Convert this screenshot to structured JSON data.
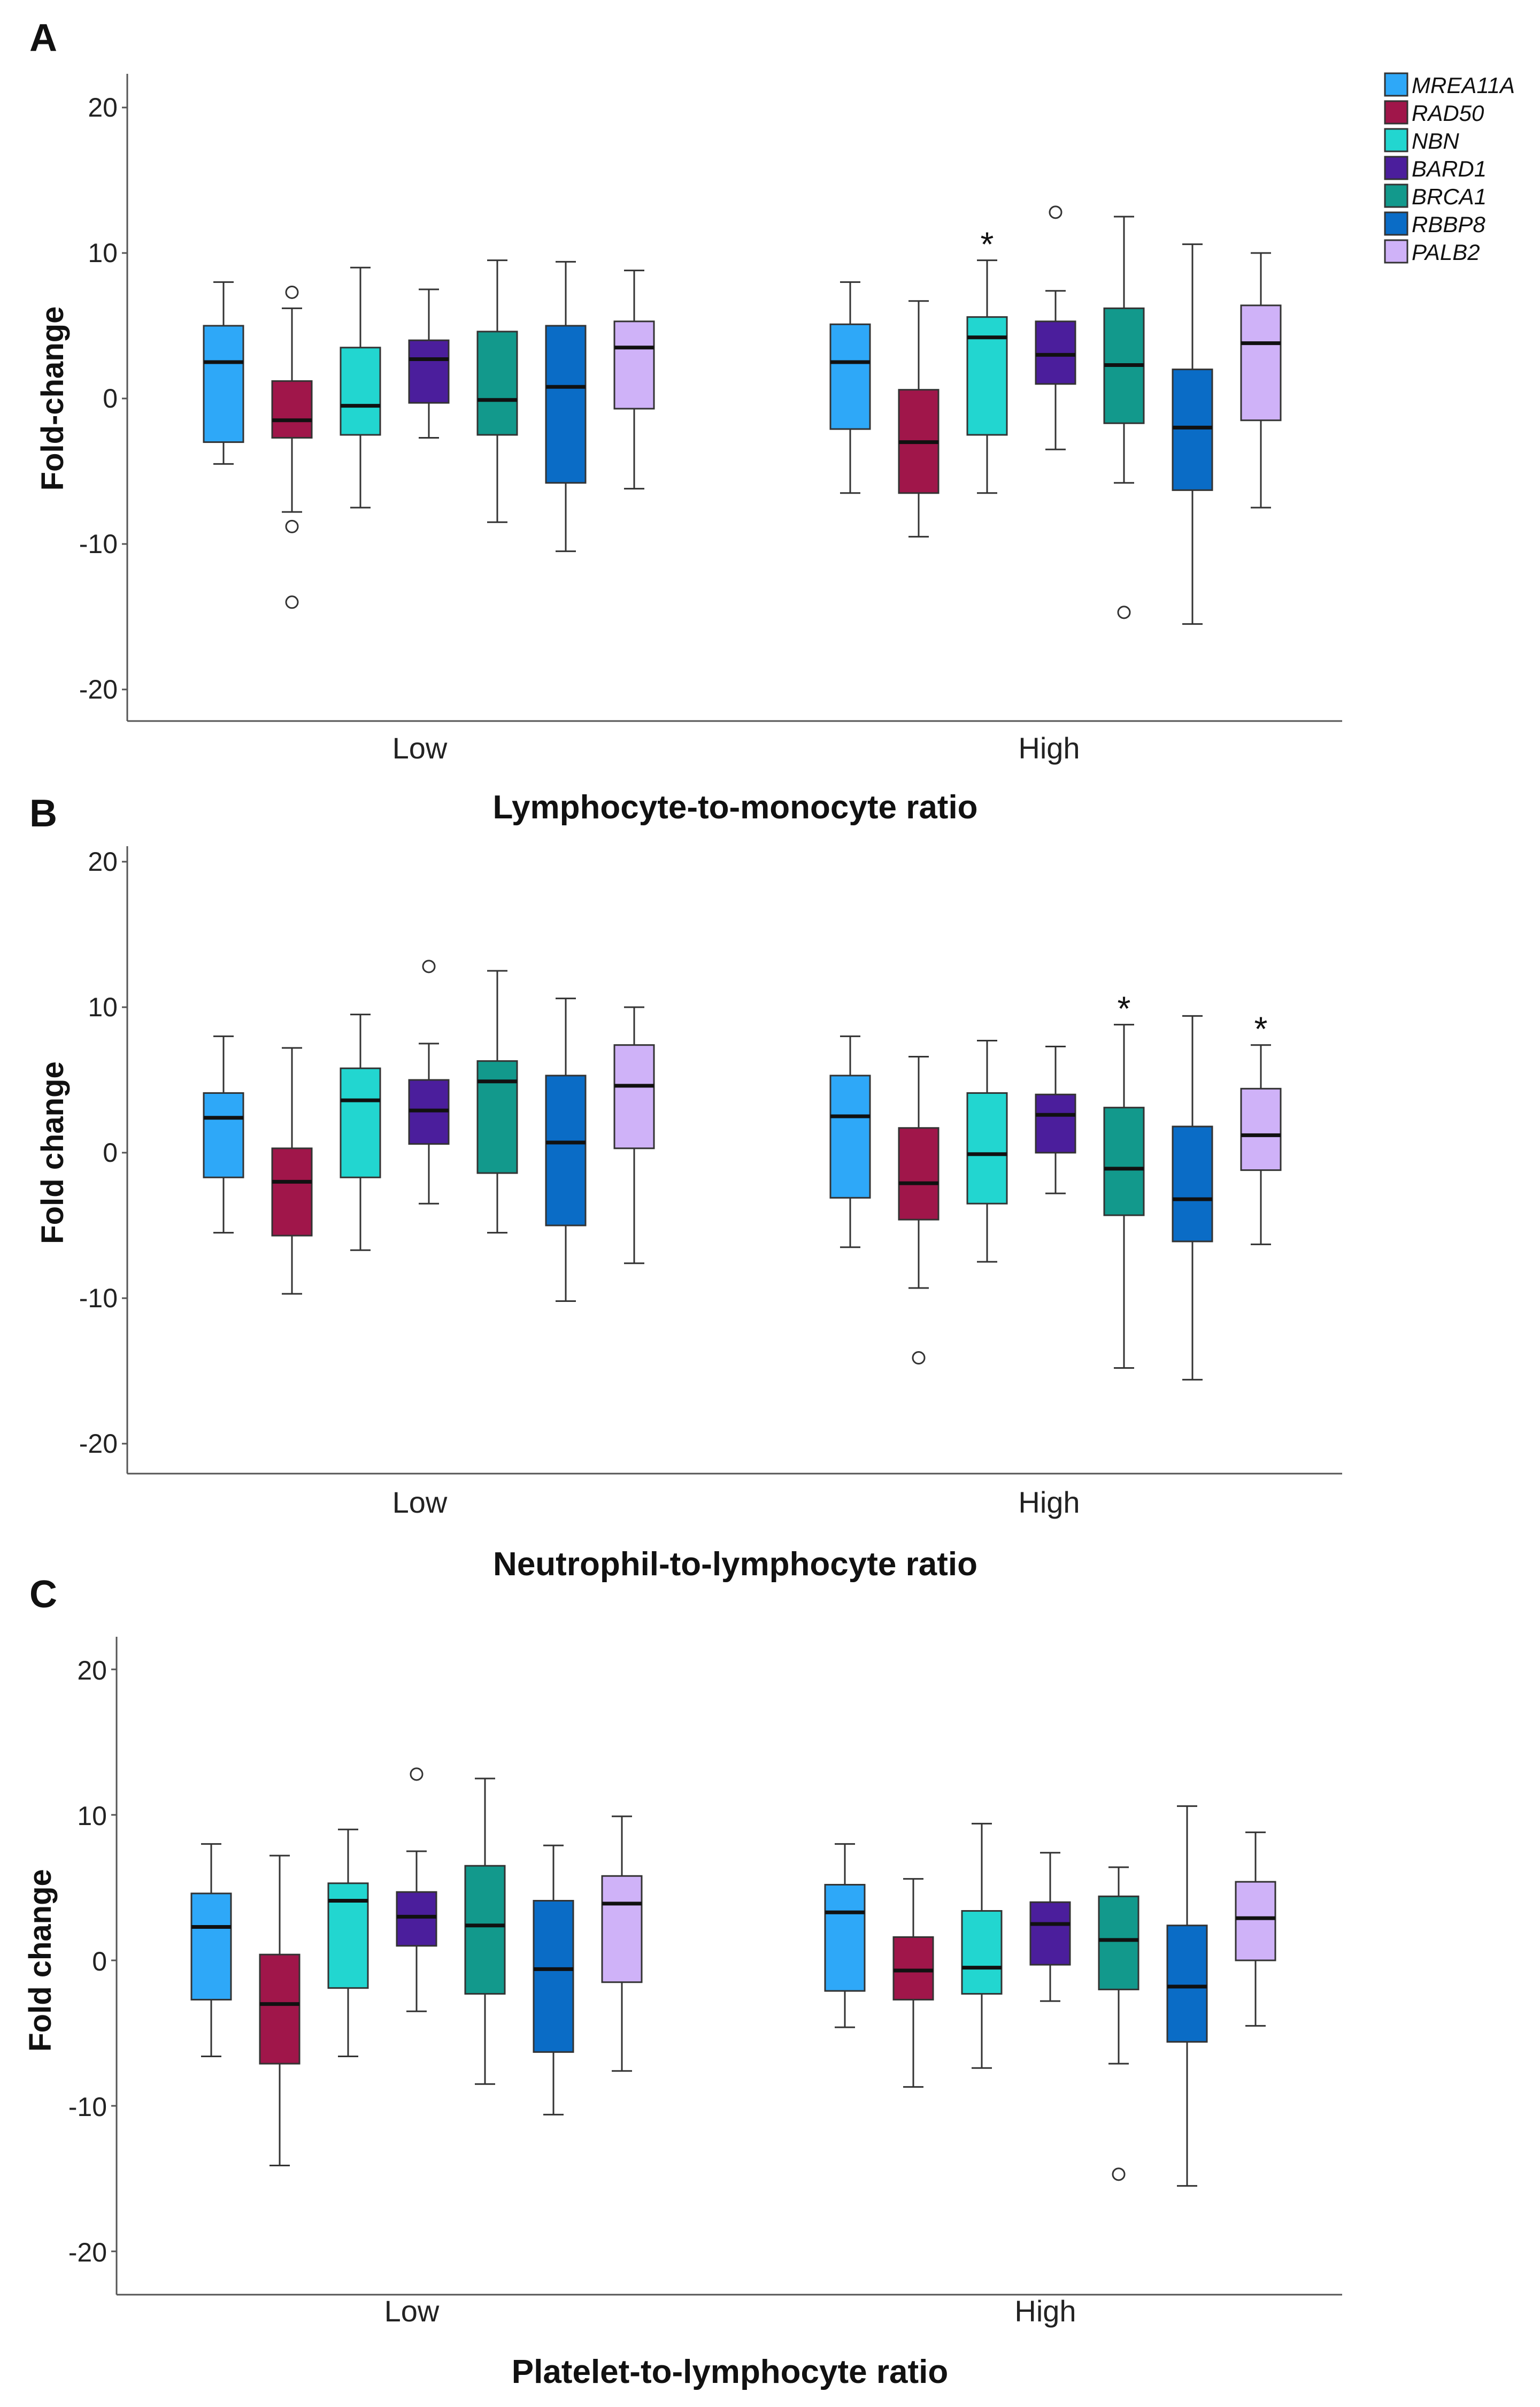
{
  "legend": [
    {
      "gene": "MREA11A",
      "color": "#2EA8F8"
    },
    {
      "gene": "RAD50",
      "color": "#A0164A"
    },
    {
      "gene": "NBN",
      "color": "#22D6D0"
    },
    {
      "gene": "BARD1",
      "color": "#4B1E9C"
    },
    {
      "gene": "BRCA1",
      "color": "#12998C"
    },
    {
      "gene": "RBBP8",
      "color": "#0A6CC6"
    },
    {
      "gene": "PALB2",
      "color": "#CFB2F8"
    }
  ],
  "chart_data": [
    {
      "type": "boxplot",
      "panel": "A",
      "xlabel": "Lymphocyte-to-monocyte ratio",
      "ylabel": "Fold-change",
      "ylim": [
        -22,
        22
      ],
      "yticks": [
        "20",
        "10",
        "0",
        "-10",
        "-20"
      ],
      "groups": [
        "Low",
        "High"
      ],
      "series": [
        {
          "group": "Low",
          "boxes": [
            {
              "gene": "MREA11A",
              "min": -4.5,
              "q1": -3,
              "median": 2.5,
              "q3": 5,
              "max": 8,
              "outliers": [],
              "star": ""
            },
            {
              "gene": "RAD50",
              "min": -7.8,
              "q1": -2.7,
              "median": -1.5,
              "q3": 1.2,
              "max": 6.2,
              "outliers": [
                7.3,
                -8.8,
                -14
              ],
              "star": ""
            },
            {
              "gene": "NBN",
              "min": -7.5,
              "q1": -2.5,
              "median": -0.5,
              "q3": 3.5,
              "max": 9,
              "outliers": [],
              "star": ""
            },
            {
              "gene": "BARD1",
              "min": -2.7,
              "q1": -0.3,
              "median": 2.7,
              "q3": 4,
              "max": 7.5,
              "outliers": [],
              "star": ""
            },
            {
              "gene": "BRCA1",
              "min": -8.5,
              "q1": -2.5,
              "median": -0.1,
              "q3": 4.6,
              "max": 9.5,
              "outliers": [],
              "star": ""
            },
            {
              "gene": "RBBP8",
              "min": -10.5,
              "q1": -5.8,
              "median": 0.8,
              "q3": 5,
              "max": 9.4,
              "outliers": [],
              "star": ""
            },
            {
              "gene": "PALB2",
              "min": -6.2,
              "q1": -0.7,
              "median": 3.5,
              "q3": 5.3,
              "max": 8.8,
              "outliers": [],
              "star": ""
            }
          ]
        },
        {
          "group": "High",
          "boxes": [
            {
              "gene": "MREA11A",
              "min": -6.5,
              "q1": -2.1,
              "median": 2.5,
              "q3": 5.1,
              "max": 8,
              "outliers": [],
              "star": ""
            },
            {
              "gene": "RAD50",
              "min": -9.5,
              "q1": -6.5,
              "median": -3,
              "q3": 0.6,
              "max": 6.7,
              "outliers": [],
              "star": ""
            },
            {
              "gene": "NBN",
              "min": -6.5,
              "q1": -2.5,
              "median": 4.2,
              "q3": 5.6,
              "max": 9.5,
              "outliers": [],
              "star": "*"
            },
            {
              "gene": "BARD1",
              "min": -3.5,
              "q1": 1,
              "median": 3,
              "q3": 5.3,
              "max": 7.4,
              "outliers": [
                12.8
              ],
              "star": ""
            },
            {
              "gene": "BRCA1",
              "min": -5.8,
              "q1": -1.7,
              "median": 2.3,
              "q3": 6.2,
              "max": 12.5,
              "outliers": [
                -14.7
              ],
              "star": ""
            },
            {
              "gene": "RBBP8",
              "min": -15.5,
              "q1": -6.3,
              "median": -2,
              "q3": 2,
              "max": 10.6,
              "outliers": [],
              "star": ""
            },
            {
              "gene": "PALB2",
              "min": -7.5,
              "q1": -1.5,
              "median": 3.8,
              "q3": 6.4,
              "max": 10,
              "outliers": [],
              "star": ""
            }
          ]
        }
      ]
    },
    {
      "type": "boxplot",
      "panel": "B",
      "xlabel": "Neutrophil-to-lymphocyte ratio",
      "ylabel": "Fold change",
      "ylim": [
        -22,
        22
      ],
      "yticks": [
        "20",
        "10",
        "0",
        "-10",
        "-20"
      ],
      "groups": [
        "Low",
        "High"
      ],
      "series": [
        {
          "group": "Low",
          "boxes": [
            {
              "gene": "MREA11A",
              "min": -5.5,
              "q1": -1.7,
              "median": 2.4,
              "q3": 4.1,
              "max": 8,
              "outliers": [],
              "star": ""
            },
            {
              "gene": "RAD50",
              "min": -9.7,
              "q1": -5.7,
              "median": -2,
              "q3": 0.3,
              "max": 7.2,
              "outliers": [],
              "star": ""
            },
            {
              "gene": "NBN",
              "min": -6.7,
              "q1": -1.7,
              "median": 3.6,
              "q3": 5.8,
              "max": 9.5,
              "outliers": [],
              "star": ""
            },
            {
              "gene": "BARD1",
              "min": -3.5,
              "q1": 0.6,
              "median": 2.9,
              "q3": 5,
              "max": 7.5,
              "outliers": [
                12.8
              ],
              "star": ""
            },
            {
              "gene": "BRCA1",
              "min": -5.5,
              "q1": -1.4,
              "median": 4.9,
              "q3": 6.3,
              "max": 12.5,
              "outliers": [],
              "star": ""
            },
            {
              "gene": "RBBP8",
              "min": -10.2,
              "q1": -5,
              "median": 0.7,
              "q3": 5.3,
              "max": 10.6,
              "outliers": [],
              "star": ""
            },
            {
              "gene": "PALB2",
              "min": -7.6,
              "q1": 0.3,
              "median": 4.6,
              "q3": 7.4,
              "max": 10,
              "outliers": [],
              "star": ""
            }
          ]
        },
        {
          "group": "High",
          "boxes": [
            {
              "gene": "MREA11A",
              "min": -6.5,
              "q1": -3.1,
              "median": 2.5,
              "q3": 5.3,
              "max": 8,
              "outliers": [],
              "star": ""
            },
            {
              "gene": "RAD50",
              "min": -9.3,
              "q1": -4.6,
              "median": -2.1,
              "q3": 1.7,
              "max": 6.6,
              "outliers": [
                -14.1
              ],
              "star": ""
            },
            {
              "gene": "NBN",
              "min": -7.5,
              "q1": -3.5,
              "median": -0.1,
              "q3": 4.1,
              "max": 7.7,
              "outliers": [],
              "star": ""
            },
            {
              "gene": "BARD1",
              "min": -2.8,
              "q1": 0,
              "median": 2.6,
              "q3": 4,
              "max": 7.3,
              "outliers": [],
              "star": ""
            },
            {
              "gene": "BRCA1",
              "min": -14.8,
              "q1": -4.3,
              "median": -1.1,
              "q3": 3.1,
              "max": 8.8,
              "outliers": [],
              "star": "*"
            },
            {
              "gene": "RBBP8",
              "min": -15.6,
              "q1": -6.1,
              "median": -3.2,
              "q3": 1.8,
              "max": 9.4,
              "outliers": [],
              "star": ""
            },
            {
              "gene": "PALB2",
              "min": -6.3,
              "q1": -1.2,
              "median": 1.2,
              "q3": 4.4,
              "max": 7.4,
              "outliers": [],
              "star": "*"
            }
          ]
        }
      ]
    },
    {
      "type": "boxplot",
      "panel": "C",
      "xlabel": "Platelet-to-lymphocyte ratio",
      "ylabel": "Fold change",
      "ylim": [
        -22,
        22
      ],
      "yticks": [
        "20",
        "10",
        "0",
        "-10",
        "-20"
      ],
      "groups": [
        "Low",
        "High"
      ],
      "series": [
        {
          "group": "Low",
          "boxes": [
            {
              "gene": "MREA11A",
              "min": -6.6,
              "q1": -2.7,
              "median": 2.3,
              "q3": 4.6,
              "max": 8,
              "outliers": [],
              "star": ""
            },
            {
              "gene": "RAD50",
              "min": -14.1,
              "q1": -7.1,
              "median": -3,
              "q3": 0.4,
              "max": 7.2,
              "outliers": [],
              "star": ""
            },
            {
              "gene": "NBN",
              "min": -6.6,
              "q1": -1.9,
              "median": 4.1,
              "q3": 5.3,
              "max": 9,
              "outliers": [],
              "star": ""
            },
            {
              "gene": "BARD1",
              "min": -3.5,
              "q1": 1,
              "median": 3,
              "q3": 4.7,
              "max": 7.5,
              "outliers": [
                12.8
              ],
              "star": ""
            },
            {
              "gene": "BRCA1",
              "min": -8.5,
              "q1": -2.3,
              "median": 2.4,
              "q3": 6.5,
              "max": 12.5,
              "outliers": [],
              "star": ""
            },
            {
              "gene": "RBBP8",
              "min": -10.6,
              "q1": -6.3,
              "median": -0.6,
              "q3": 4.1,
              "max": 7.9,
              "outliers": [],
              "star": ""
            },
            {
              "gene": "PALB2",
              "min": -7.6,
              "q1": -1.5,
              "median": 3.9,
              "q3": 5.8,
              "max": 9.9,
              "outliers": [],
              "star": ""
            }
          ]
        },
        {
          "group": "High",
          "boxes": [
            {
              "gene": "MREA11A",
              "min": -4.6,
              "q1": -2.1,
              "median": 3.3,
              "q3": 5.2,
              "max": 8,
              "outliers": [],
              "star": ""
            },
            {
              "gene": "RAD50",
              "min": -8.7,
              "q1": -2.7,
              "median": -0.7,
              "q3": 1.6,
              "max": 5.6,
              "outliers": [],
              "star": ""
            },
            {
              "gene": "NBN",
              "min": -7.4,
              "q1": -2.3,
              "median": -0.5,
              "q3": 3.4,
              "max": 9.4,
              "outliers": [],
              "star": ""
            },
            {
              "gene": "BARD1",
              "min": -2.8,
              "q1": -0.3,
              "median": 2.5,
              "q3": 4,
              "max": 7.4,
              "outliers": [],
              "star": ""
            },
            {
              "gene": "BRCA1",
              "min": -7.1,
              "q1": -2,
              "median": 1.4,
              "q3": 4.4,
              "max": 6.4,
              "outliers": [
                -14.7
              ],
              "star": ""
            },
            {
              "gene": "RBBP8",
              "min": -15.5,
              "q1": -5.6,
              "median": -1.8,
              "q3": 2.4,
              "max": 10.6,
              "outliers": [],
              "star": ""
            },
            {
              "gene": "PALB2",
              "min": -4.5,
              "q1": 0,
              "median": 2.9,
              "q3": 5.4,
              "max": 8.8,
              "outliers": [],
              "star": ""
            }
          ]
        }
      ]
    }
  ]
}
